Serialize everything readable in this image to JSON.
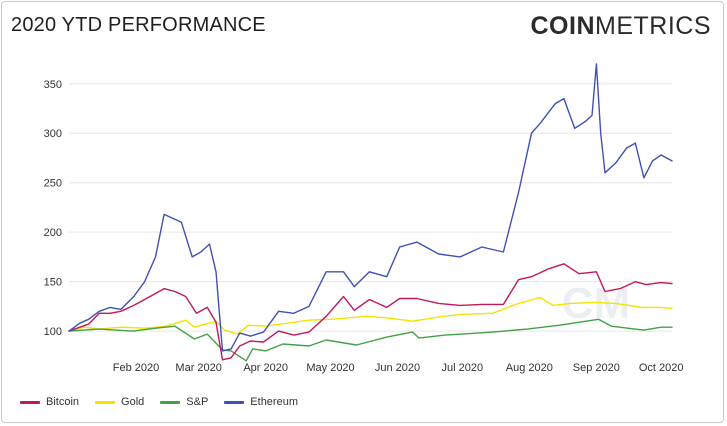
{
  "header": {
    "title": "2020 YTD PERFORMANCE",
    "brand_bold": "COIN",
    "brand_light": "METRICS"
  },
  "chart_data": {
    "type": "line",
    "title": "2020 YTD PERFORMANCE",
    "xlabel": "",
    "ylabel": "",
    "x_ticks": [
      "Feb 2020",
      "Mar 2020",
      "Apr 2020",
      "May 2020",
      "Jun 2020",
      "Jul 2020",
      "Aug 2020",
      "Sep 2020",
      "Oct 2020"
    ],
    "y_ticks": [
      100,
      150,
      200,
      250,
      300,
      350
    ],
    "ylim": [
      88,
      372
    ],
    "xlim": [
      "2020-01-01",
      "2020-10-06"
    ],
    "grid": "horizontal",
    "legend": "bottom-left",
    "watermark": "CM",
    "series": [
      {
        "name": "Bitcoin",
        "color": "#c2185b",
        "points": [
          [
            "2020-01-01",
            100
          ],
          [
            "2020-01-06",
            104
          ],
          [
            "2020-01-10",
            107
          ],
          [
            "2020-01-15",
            118
          ],
          [
            "2020-01-20",
            118
          ],
          [
            "2020-01-25",
            120
          ],
          [
            "2020-01-31",
            126
          ],
          [
            "2020-02-05",
            132
          ],
          [
            "2020-02-10",
            138
          ],
          [
            "2020-02-14",
            143
          ],
          [
            "2020-02-19",
            140
          ],
          [
            "2020-02-24",
            135
          ],
          [
            "2020-02-29",
            118
          ],
          [
            "2020-03-05",
            124
          ],
          [
            "2020-03-09",
            109
          ],
          [
            "2020-03-12",
            71
          ],
          [
            "2020-03-16",
            73
          ],
          [
            "2020-03-20",
            85
          ],
          [
            "2020-03-25",
            90
          ],
          [
            "2020-03-31",
            89
          ],
          [
            "2020-04-07",
            100
          ],
          [
            "2020-04-14",
            96
          ],
          [
            "2020-04-21",
            99
          ],
          [
            "2020-04-29",
            115
          ],
          [
            "2020-05-07",
            135
          ],
          [
            "2020-05-12",
            121
          ],
          [
            "2020-05-19",
            132
          ],
          [
            "2020-05-27",
            124
          ],
          [
            "2020-06-02",
            133
          ],
          [
            "2020-06-10",
            133
          ],
          [
            "2020-06-20",
            128
          ],
          [
            "2020-06-30",
            126
          ],
          [
            "2020-07-10",
            127
          ],
          [
            "2020-07-20",
            127
          ],
          [
            "2020-07-27",
            152
          ],
          [
            "2020-08-02",
            155
          ],
          [
            "2020-08-10",
            163
          ],
          [
            "2020-08-17",
            168
          ],
          [
            "2020-08-24",
            158
          ],
          [
            "2020-09-01",
            160
          ],
          [
            "2020-09-05",
            140
          ],
          [
            "2020-09-12",
            143
          ],
          [
            "2020-09-19",
            150
          ],
          [
            "2020-09-24",
            147
          ],
          [
            "2020-10-01",
            149
          ],
          [
            "2020-10-06",
            148
          ]
        ]
      },
      {
        "name": "Gold",
        "color": "#f2e300",
        "points": [
          [
            "2020-01-01",
            100
          ],
          [
            "2020-01-08",
            104
          ],
          [
            "2020-01-15",
            102
          ],
          [
            "2020-01-25",
            104
          ],
          [
            "2020-02-05",
            103
          ],
          [
            "2020-02-15",
            105
          ],
          [
            "2020-02-24",
            111
          ],
          [
            "2020-02-28",
            104
          ],
          [
            "2020-03-09",
            110
          ],
          [
            "2020-03-13",
            101
          ],
          [
            "2020-03-19",
            97
          ],
          [
            "2020-03-24",
            106
          ],
          [
            "2020-04-01",
            105
          ],
          [
            "2020-04-14), 114",
            114
          ],
          [
            "2020-04-21",
            111
          ],
          [
            "2020-05-01",
            112
          ],
          [
            "2020-05-18",
            115
          ],
          [
            "2020-05-29",
            113
          ],
          [
            "2020-06-08",
            110
          ],
          [
            "2020-06-22",
            115
          ],
          [
            "2020-07-01",
            117
          ],
          [
            "2020-07-15",
            118
          ],
          [
            "2020-07-27",
            128
          ],
          [
            "2020-08-06",
            134
          ],
          [
            "2020-08-12",
            126
          ],
          [
            "2020-08-20",
            128
          ],
          [
            "2020-09-01",
            129
          ],
          [
            "2020-09-10",
            128
          ],
          [
            "2020-09-22",
            124
          ],
          [
            "2020-10-01",
            124
          ],
          [
            "2020-10-06",
            123
          ]
        ]
      },
      {
        "name": "S&P",
        "color": "#43a047",
        "points": [
          [
            "2020-01-01",
            100
          ],
          [
            "2020-01-15",
            102
          ],
          [
            "2020-01-31",
            100
          ],
          [
            "2020-02-10",
            103
          ],
          [
            "2020-02-19",
            105
          ],
          [
            "2020-02-28",
            92
          ],
          [
            "2020-03-05",
            97
          ],
          [
            "2020-03-12",
            81
          ],
          [
            "2020-03-16",
            80
          ],
          [
            "2020-03-23",
            70
          ],
          [
            "2020-03-26",
            82
          ],
          [
            "2020-04-01",
            80
          ],
          [
            "2020-04-09",
            87
          ],
          [
            "2020-04-21",
            85
          ],
          [
            "2020-04-29",
            91
          ],
          [
            "2020-05-13",
            86
          ],
          [
            "2020-05-27",
            94
          ],
          [
            "2020-06-08",
            99
          ],
          [
            "2020-06-11",
            93
          ],
          [
            "2020-06-23",
            96
          ],
          [
            "2020-07-01",
            97
          ],
          [
            "2020-07-15",
            99
          ],
          [
            "2020-07-31",
            102
          ],
          [
            "2020-08-15",
            106
          ],
          [
            "2020-09-02",
            112
          ],
          [
            "2020-09-08",
            105
          ],
          [
            "2020-09-23",
            101
          ],
          [
            "2020-10-01",
            104
          ],
          [
            "2020-10-06",
            104
          ]
        ]
      },
      {
        "name": "Ethereum",
        "color": "#3f51b5",
        "points": [
          [
            "2020-01-01",
            100
          ],
          [
            "2020-01-06",
            108
          ],
          [
            "2020-01-10",
            112
          ],
          [
            "2020-01-15",
            120
          ],
          [
            "2020-01-20",
            124
          ],
          [
            "2020-01-25",
            122
          ],
          [
            "2020-01-31",
            135
          ],
          [
            "2020-02-05",
            150
          ],
          [
            "2020-02-10",
            175
          ],
          [
            "2020-02-14",
            218
          ],
          [
            "2020-02-18), 205",
            205
          ],
          [
            "2020-02-22",
            210
          ],
          [
            "2020-02-27",
            175
          ],
          [
            "2020-03-02",
            180
          ],
          [
            "2020-03-06",
            188
          ],
          [
            "2020-03-09",
            160
          ],
          [
            "2020-03-12",
            80
          ],
          [
            "2020-03-16",
            82
          ],
          [
            "2020-03-20",
            98
          ],
          [
            "2020-03-25",
            95
          ],
          [
            "2020-03-31",
            99
          ],
          [
            "2020-04-07",
            120
          ],
          [
            "2020-04-14",
            118
          ],
          [
            "2020-04-21",
            125
          ],
          [
            "2020-04-29",
            160
          ],
          [
            "2020-05-07",
            160
          ],
          [
            "2020-05-12",
            145
          ],
          [
            "2020-05-19",
            160
          ],
          [
            "2020-05-27",
            155
          ],
          [
            "2020-06-02",
            185
          ],
          [
            "2020-06-10",
            190
          ],
          [
            "2020-06-20",
            178
          ],
          [
            "2020-06-30",
            175
          ],
          [
            "2020-07-10",
            185
          ],
          [
            "2020-07-20",
            180
          ],
          [
            "2020-07-27",
            240
          ],
          [
            "2020-08-02",
            300
          ],
          [
            "2020-08-06",
            310
          ],
          [
            "2020-08-13",
            330
          ],
          [
            "2020-08-17",
            335
          ],
          [
            "2020-08-22",
            305
          ],
          [
            "2020-08-27",
            312
          ],
          [
            "2020-08-30",
            318
          ],
          [
            "2020-09-01",
            370
          ],
          [
            "2020-09-03",
            300
          ],
          [
            "2020-09-05",
            260
          ],
          [
            "2020-09-10",
            270
          ],
          [
            "2020-09-15",
            285
          ],
          [
            "2020-09-19",
            290
          ],
          [
            "2020-09-23",
            255
          ],
          [
            "2020-09-27",
            272
          ],
          [
            "2020-10-01",
            278
          ],
          [
            "2020-10-06",
            272
          ]
        ]
      }
    ]
  }
}
